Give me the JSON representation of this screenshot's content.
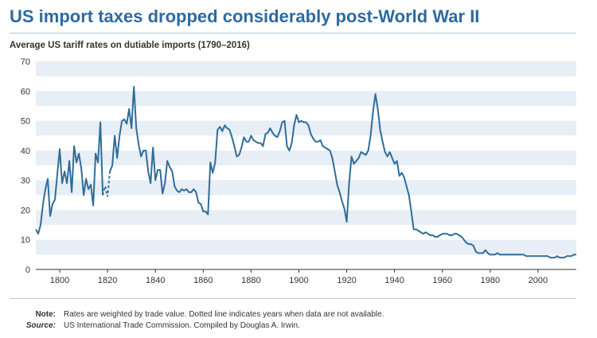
{
  "title": "US import taxes dropped considerably post-World War II",
  "subtitle": "Average US tariff rates on dutiable imports (1790–2016)",
  "note_label": "Note:",
  "note_text": "Rates are weighted by trade value.  Dotted line indicates years when data are not available.",
  "source_label": "Source:",
  "source_text": "US International Trade Commission. Compiled by Douglas A. Irwin.",
  "colors": {
    "line": "#2f6d9a",
    "band": "#e7eef6",
    "title": "#2d6aa0",
    "axis": "#333333"
  },
  "chart_data": {
    "type": "line",
    "title": "Average US tariff rates on dutiable imports (1790–2016)",
    "xlabel": "",
    "ylabel": "",
    "xlim": [
      1790,
      2016
    ],
    "ylim": [
      0,
      70
    ],
    "x_ticks": [
      1800,
      1820,
      1840,
      1860,
      1880,
      1900,
      1920,
      1940,
      1960,
      1980,
      2000
    ],
    "y_ticks": [
      0,
      10,
      20,
      30,
      40,
      50,
      60,
      70
    ],
    "grid": "alternating horizontal bands",
    "gap": {
      "x_start": 1818,
      "x_end": 1821,
      "style": "dotted"
    },
    "series": [
      {
        "values": [
          [
            1790,
            13.5
          ],
          [
            1791,
            12
          ],
          [
            1792,
            15
          ],
          [
            1793,
            22
          ],
          [
            1794,
            27
          ],
          [
            1795,
            30.5
          ],
          [
            1796,
            18
          ],
          [
            1797,
            22
          ],
          [
            1798,
            23.5
          ],
          [
            1799,
            32
          ],
          [
            1800,
            40.5
          ],
          [
            1801,
            29
          ],
          [
            1802,
            33
          ],
          [
            1803,
            29
          ],
          [
            1804,
            36.5
          ],
          [
            1805,
            26
          ],
          [
            1806,
            41.5
          ],
          [
            1807,
            36
          ],
          [
            1808,
            39
          ],
          [
            1809,
            34
          ],
          [
            1810,
            25
          ],
          [
            1811,
            30.5
          ],
          [
            1812,
            27
          ],
          [
            1813,
            28.5
          ],
          [
            1814,
            21.5
          ],
          [
            1815,
            39
          ],
          [
            1816,
            36
          ],
          [
            1817,
            49.5
          ],
          [
            1818,
            25
          ],
          [
            1819,
            28
          ],
          [
            1820,
            24.5
          ],
          [
            1821,
            33
          ],
          [
            1822,
            35
          ],
          [
            1823,
            45
          ],
          [
            1824,
            37.5
          ],
          [
            1825,
            45
          ],
          [
            1826,
            50
          ],
          [
            1827,
            50.5
          ],
          [
            1828,
            49
          ],
          [
            1829,
            54
          ],
          [
            1830,
            47.5
          ],
          [
            1831,
            61.5
          ],
          [
            1832,
            47.5
          ],
          [
            1833,
            42
          ],
          [
            1834,
            38
          ],
          [
            1835,
            40
          ],
          [
            1836,
            40
          ],
          [
            1837,
            33
          ],
          [
            1838,
            29
          ],
          [
            1839,
            41
          ],
          [
            1840,
            30
          ],
          [
            1841,
            33.5
          ],
          [
            1842,
            33.5
          ],
          [
            1843,
            25.5
          ],
          [
            1844,
            29
          ],
          [
            1845,
            36.5
          ],
          [
            1846,
            34.5
          ],
          [
            1847,
            33
          ],
          [
            1848,
            28
          ],
          [
            1849,
            26.5
          ],
          [
            1850,
            26
          ],
          [
            1851,
            27
          ],
          [
            1852,
            26.5
          ],
          [
            1853,
            27
          ],
          [
            1854,
            26
          ],
          [
            1855,
            26
          ],
          [
            1856,
            27
          ],
          [
            1857,
            26
          ],
          [
            1858,
            22.5
          ],
          [
            1859,
            22
          ],
          [
            1860,
            19.5
          ],
          [
            1861,
            19.5
          ],
          [
            1862,
            18.5
          ],
          [
            1863,
            36
          ],
          [
            1864,
            32.5
          ],
          [
            1865,
            36
          ],
          [
            1866,
            47
          ],
          [
            1867,
            48
          ],
          [
            1868,
            46.5
          ],
          [
            1869,
            48.5
          ],
          [
            1870,
            47.5
          ],
          [
            1871,
            47
          ],
          [
            1872,
            44.5
          ],
          [
            1873,
            41.5
          ],
          [
            1874,
            38
          ],
          [
            1875,
            38.5
          ],
          [
            1876,
            41
          ],
          [
            1877,
            44.5
          ],
          [
            1878,
            43
          ],
          [
            1879,
            43
          ],
          [
            1880,
            45
          ],
          [
            1881,
            43.5
          ],
          [
            1882,
            43
          ],
          [
            1883,
            42.5
          ],
          [
            1884,
            42.5
          ],
          [
            1885,
            41.5
          ],
          [
            1886,
            45.5
          ],
          [
            1887,
            46
          ],
          [
            1888,
            47.5
          ],
          [
            1889,
            46
          ],
          [
            1890,
            45
          ],
          [
            1891,
            44.5
          ],
          [
            1892,
            46.5
          ],
          [
            1893,
            49.5
          ],
          [
            1894,
            50
          ],
          [
            1895,
            41.5
          ],
          [
            1896,
            40
          ],
          [
            1897,
            42.5
          ],
          [
            1898,
            48.5
          ],
          [
            1899,
            52
          ],
          [
            1900,
            49.5
          ],
          [
            1901,
            50
          ],
          [
            1902,
            49.5
          ],
          [
            1903,
            49.5
          ],
          [
            1904,
            48.5
          ],
          [
            1905,
            45.5
          ],
          [
            1906,
            44
          ],
          [
            1907,
            43
          ],
          [
            1908,
            43
          ],
          [
            1909,
            43.5
          ],
          [
            1910,
            41.5
          ],
          [
            1911,
            41
          ],
          [
            1912,
            40.5
          ],
          [
            1913,
            40
          ],
          [
            1914,
            37.5
          ],
          [
            1915,
            33
          ],
          [
            1916,
            28.5
          ],
          [
            1917,
            26
          ],
          [
            1918,
            23
          ],
          [
            1919,
            20.5
          ],
          [
            1920,
            16
          ],
          [
            1921,
            29
          ],
          [
            1922,
            38
          ],
          [
            1923,
            35.5
          ],
          [
            1924,
            36.5
          ],
          [
            1925,
            37.5
          ],
          [
            1926,
            39.5
          ],
          [
            1927,
            39
          ],
          [
            1928,
            38.5
          ],
          [
            1929,
            40
          ],
          [
            1930,
            45
          ],
          [
            1931,
            53
          ],
          [
            1932,
            59
          ],
          [
            1933,
            54
          ],
          [
            1934,
            47
          ],
          [
            1935,
            43
          ],
          [
            1936,
            39.5
          ],
          [
            1937,
            38
          ],
          [
            1938,
            39.5
          ],
          [
            1939,
            37.5
          ],
          [
            1940,
            35.5
          ],
          [
            1941,
            36.5
          ],
          [
            1942,
            31.5
          ],
          [
            1943,
            32.5
          ],
          [
            1944,
            31
          ],
          [
            1945,
            28
          ],
          [
            1946,
            25
          ],
          [
            1947,
            19.5
          ],
          [
            1948,
            13.5
          ],
          [
            1949,
            13.5
          ],
          [
            1950,
            13
          ],
          [
            1951,
            12.5
          ],
          [
            1952,
            12
          ],
          [
            1953,
            12.5
          ],
          [
            1954,
            12
          ],
          [
            1955,
            11.5
          ],
          [
            1956,
            11.5
          ],
          [
            1957,
            11
          ],
          [
            1958,
            11
          ],
          [
            1959,
            11.5
          ],
          [
            1960,
            12
          ],
          [
            1961,
            12
          ],
          [
            1962,
            12
          ],
          [
            1963,
            11.5
          ],
          [
            1964,
            11.5
          ],
          [
            1965,
            12
          ],
          [
            1966,
            12
          ],
          [
            1967,
            11.5
          ],
          [
            1968,
            11
          ],
          [
            1969,
            10
          ],
          [
            1970,
            9
          ],
          [
            1971,
            8.5
          ],
          [
            1972,
            8.5
          ],
          [
            1973,
            8
          ],
          [
            1974,
            6
          ],
          [
            1975,
            5.5
          ],
          [
            1976,
            5.5
          ],
          [
            1977,
            5.5
          ],
          [
            1978,
            6.5
          ],
          [
            1979,
            5.5
          ],
          [
            1980,
            5
          ],
          [
            1981,
            5
          ],
          [
            1982,
            5
          ],
          [
            1983,
            5.5
          ],
          [
            1984,
            5
          ],
          [
            1985,
            5
          ],
          [
            1986,
            5
          ],
          [
            1987,
            5
          ],
          [
            1988,
            5
          ],
          [
            1989,
            5
          ],
          [
            1990,
            5
          ],
          [
            1991,
            5
          ],
          [
            1992,
            5
          ],
          [
            1993,
            5
          ],
          [
            1994,
            5
          ],
          [
            1995,
            4.5
          ],
          [
            1996,
            4.5
          ],
          [
            1997,
            4.5
          ],
          [
            1998,
            4.5
          ],
          [
            1999,
            4.5
          ],
          [
            2000,
            4.5
          ],
          [
            2001,
            4.5
          ],
          [
            2002,
            4.5
          ],
          [
            2003,
            4.5
          ],
          [
            2004,
            4.5
          ],
          [
            2005,
            4
          ],
          [
            2006,
            4
          ],
          [
            2007,
            4
          ],
          [
            2008,
            4.5
          ],
          [
            2009,
            4
          ],
          [
            2010,
            4
          ],
          [
            2011,
            4
          ],
          [
            2012,
            4.5
          ],
          [
            2013,
            4.5
          ],
          [
            2014,
            4.5
          ],
          [
            2015,
            5
          ],
          [
            2016,
            5
          ]
        ]
      }
    ]
  }
}
